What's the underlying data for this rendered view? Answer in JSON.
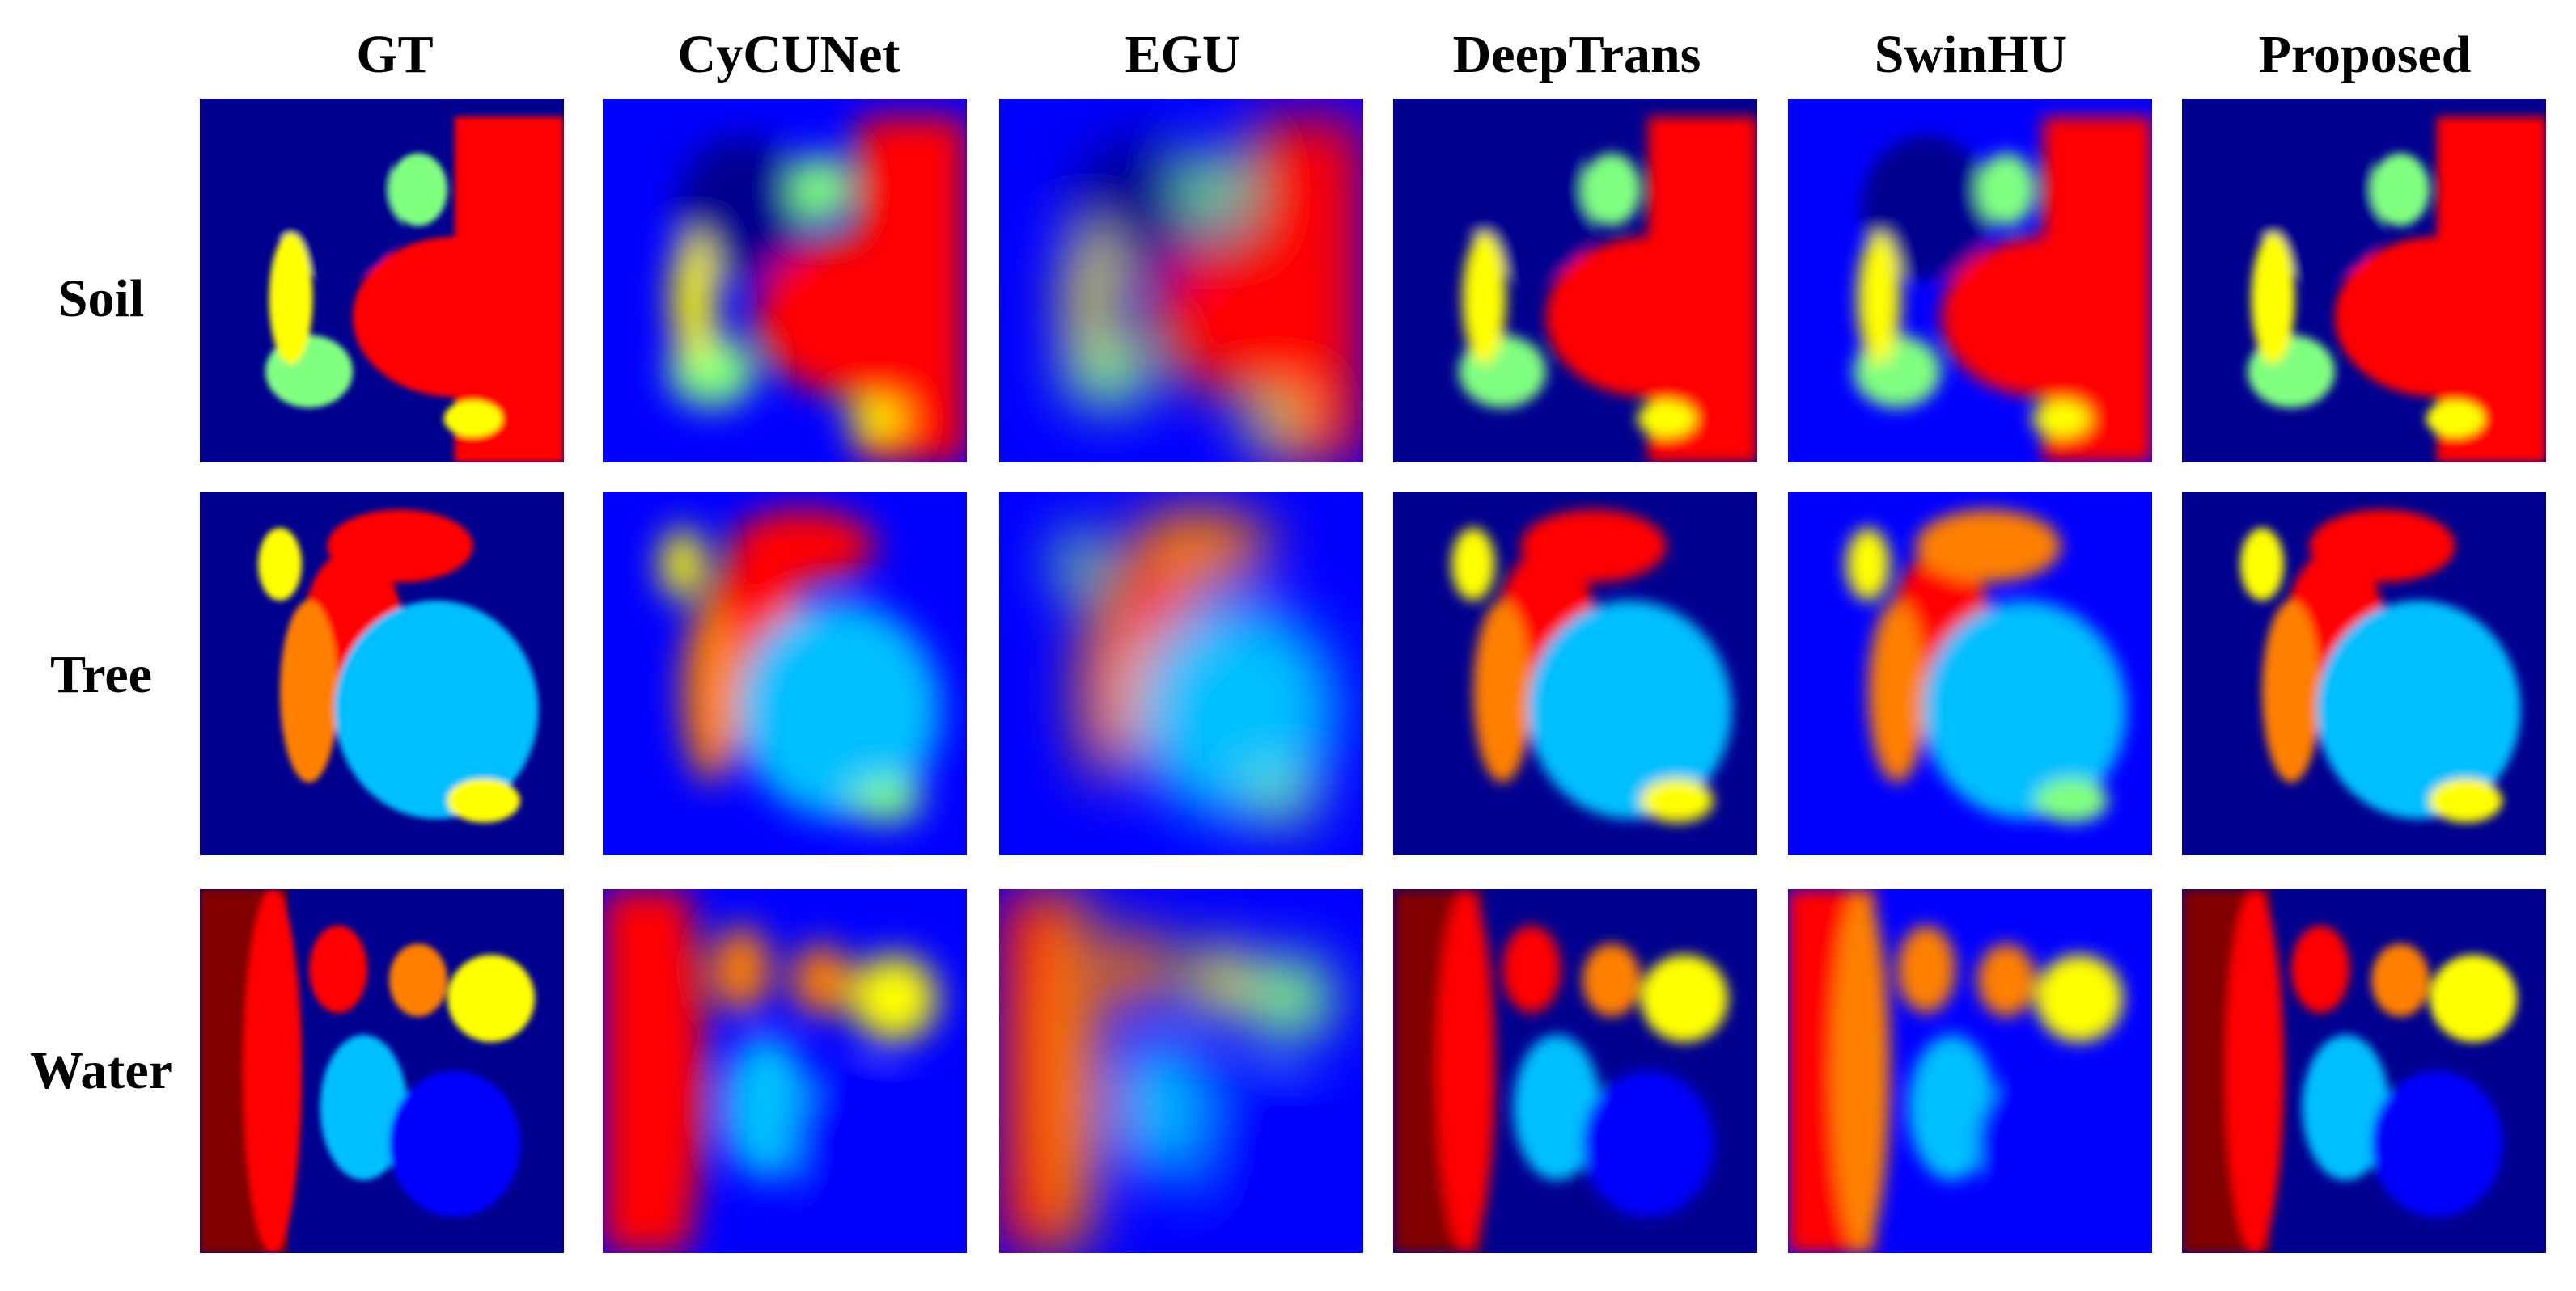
{
  "columns": [
    "GT",
    "CyCUNet",
    "EGU",
    "DeepTrans",
    "SwinHU",
    "Proposed"
  ],
  "rows": [
    "Soil",
    "Tree",
    "Water"
  ],
  "colormap": [
    "#00008f",
    "#0000ff",
    "#00bfff",
    "#80ff80",
    "#ffff00",
    "#ff8000",
    "#ff0000",
    "#800000"
  ]
}
